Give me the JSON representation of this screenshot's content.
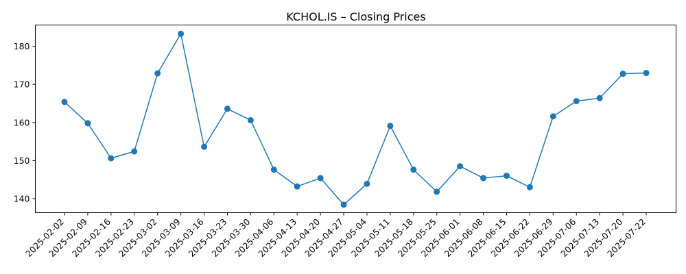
{
  "chart_data": {
    "type": "line",
    "title": "KCHOL.IS – Closing Prices",
    "xlabel": "",
    "ylabel": "",
    "x": [
      "2025-02-02",
      "2025-02-09",
      "2025-02-16",
      "2025-02-23",
      "2025-03-02",
      "2025-03-09",
      "2025-03-16",
      "2025-03-23",
      "2025-03-30",
      "2025-04-06",
      "2025-04-13",
      "2025-04-20",
      "2025-04-27",
      "2025-05-04",
      "2025-05-11",
      "2025-05-18",
      "2025-05-25",
      "2025-06-01",
      "2025-06-08",
      "2025-06-15",
      "2025-06-22",
      "2025-06-29",
      "2025-07-06",
      "2025-07-13",
      "2025-07-20",
      "2025-07-22"
    ],
    "series": [
      {
        "color": "#1f77b4",
        "marker": "circle",
        "values": [
          165.4,
          159.8,
          150.6,
          152.4,
          172.9,
          183.3,
          153.6,
          163.6,
          160.6,
          147.6,
          143.2,
          145.4,
          138.4,
          143.9,
          159.1,
          147.6,
          141.8,
          148.5,
          145.4,
          146.0,
          143.0,
          161.6,
          165.6,
          166.4,
          172.8,
          173.0
        ]
      }
    ],
    "yticks": [
      140,
      150,
      160,
      170,
      180
    ],
    "ylim": [
      136.3,
      185.6
    ],
    "grid": false,
    "legend": "none"
  }
}
